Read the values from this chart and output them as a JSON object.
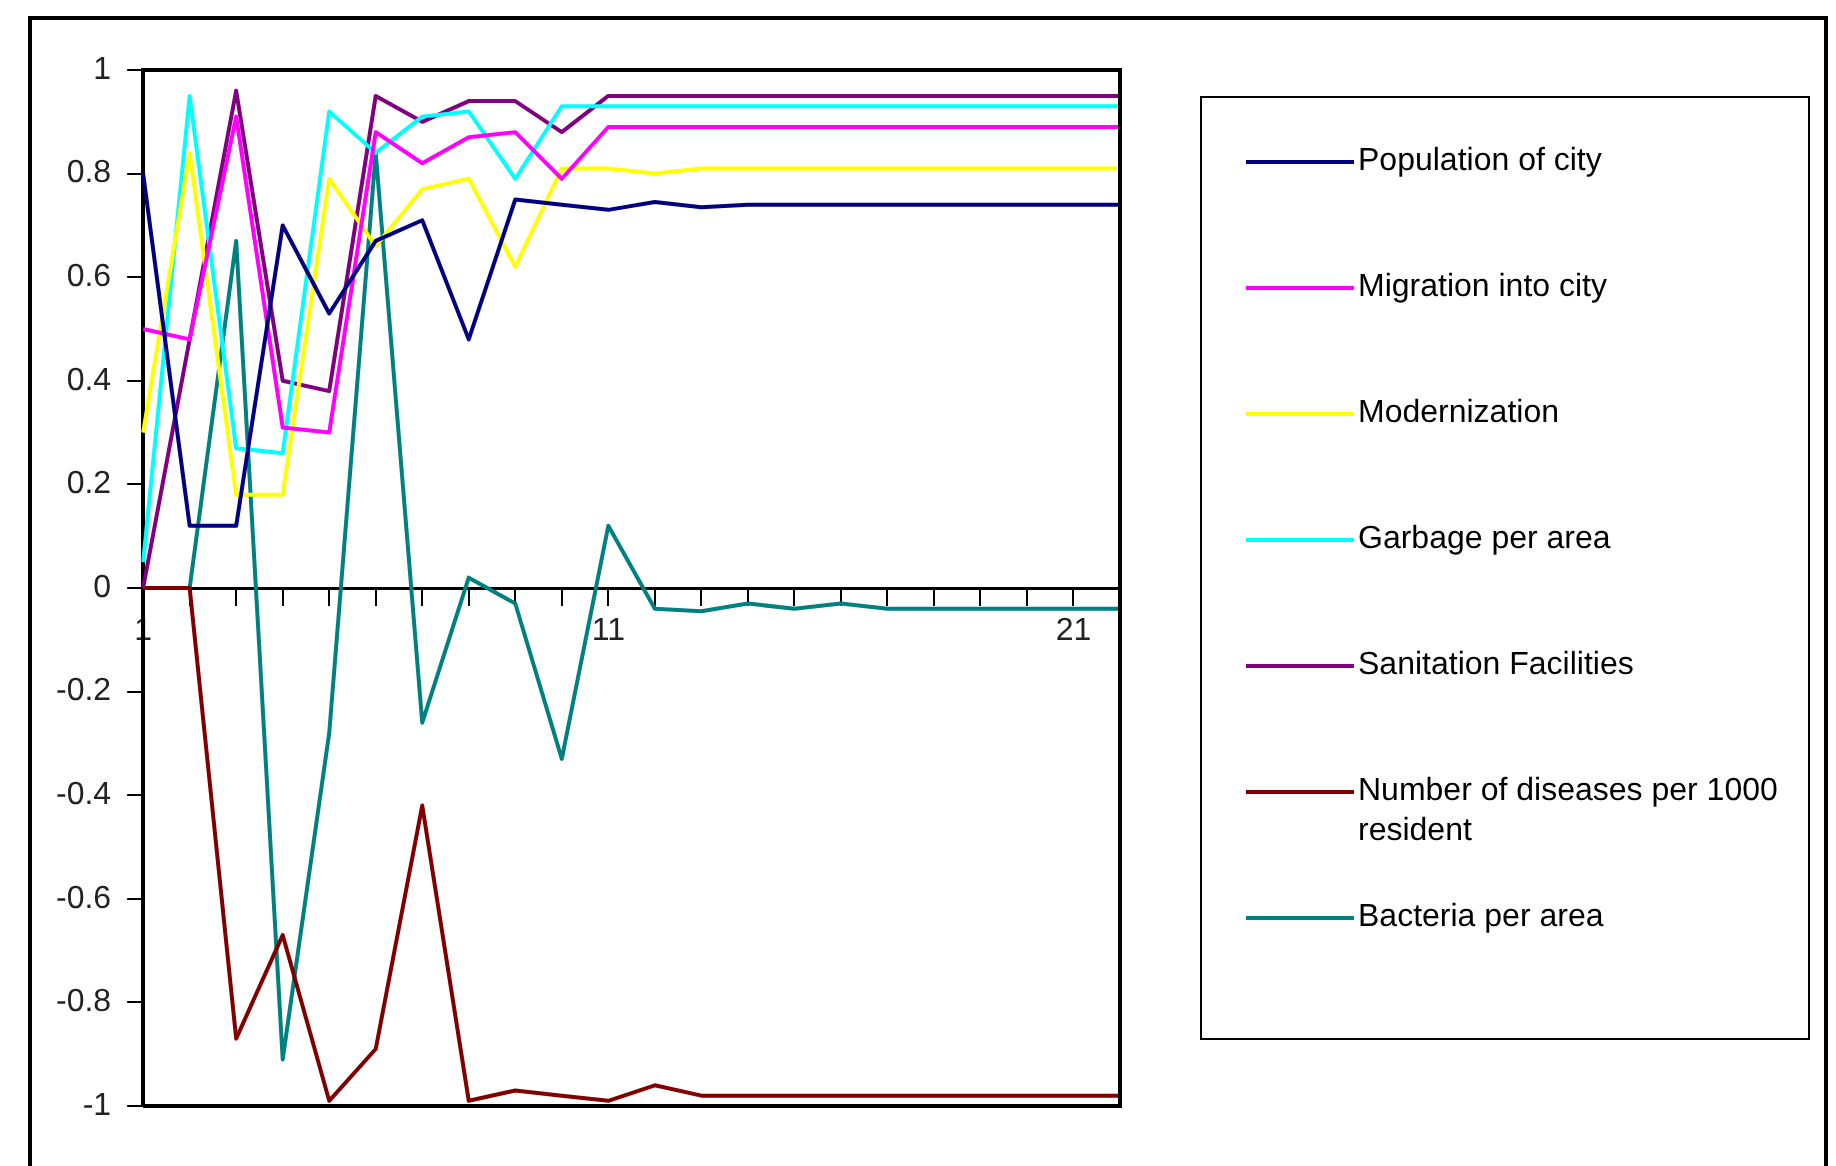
{
  "chart_data": {
    "type": "line",
    "categories": [
      "1",
      null,
      null,
      null,
      null,
      null,
      null,
      null,
      null,
      null,
      "11",
      null,
      null,
      null,
      null,
      null,
      null,
      null,
      null,
      null,
      "21",
      null
    ],
    "ylim": [
      -1,
      1
    ],
    "yticks": [
      -1,
      -0.8,
      -0.6,
      -0.4,
      -0.2,
      0,
      0.2,
      0.4,
      0.6,
      0.8,
      1
    ],
    "grid": false,
    "legend": "right",
    "marker": "none",
    "line_style": "solid",
    "series": [
      {
        "name": "Population  of city",
        "color": "#000080",
        "values": [
          0.8,
          0.12,
          0.12,
          0.7,
          0.53,
          0.67,
          0.71,
          0.48,
          0.75,
          0.74,
          0.73,
          0.745,
          0.735,
          0.74,
          0.74,
          0.74,
          0.74,
          0.74,
          0.74,
          0.74,
          0.74,
          0.74
        ]
      },
      {
        "name": "Migration  into city",
        "color": "#ff00ff",
        "values": [
          0.5,
          0.48,
          0.91,
          0.31,
          0.3,
          0.88,
          0.82,
          0.87,
          0.88,
          0.79,
          0.89,
          0.89,
          0.89,
          0.89,
          0.89,
          0.89,
          0.89,
          0.89,
          0.89,
          0.89,
          0.89,
          0.89
        ]
      },
      {
        "name": "Modernization",
        "color": "#ffff00",
        "values": [
          0.3,
          0.84,
          0.18,
          0.18,
          0.79,
          0.66,
          0.77,
          0.79,
          0.62,
          0.81,
          0.81,
          0.8,
          0.81,
          0.81,
          0.81,
          0.81,
          0.81,
          0.81,
          0.81,
          0.81,
          0.81,
          0.81
        ]
      },
      {
        "name": "Garbage per area",
        "color": "#00ffff",
        "values": [
          0.05,
          0.95,
          0.27,
          0.26,
          0.92,
          0.84,
          0.91,
          0.92,
          0.79,
          0.93,
          0.93,
          0.93,
          0.93,
          0.93,
          0.93,
          0.93,
          0.93,
          0.93,
          0.93,
          0.93,
          0.93,
          0.93
        ]
      },
      {
        "name": "Sanitation Facilities",
        "color": "#800080",
        "values": [
          0,
          0.48,
          0.96,
          0.4,
          0.38,
          0.95,
          0.9,
          0.94,
          0.94,
          0.88,
          0.95,
          0.95,
          0.95,
          0.95,
          0.95,
          0.95,
          0.95,
          0.95,
          0.95,
          0.95,
          0.95,
          0.95
        ]
      },
      {
        "name": "Number of diseases  per 1000 resident",
        "color": "#800000",
        "values": [
          0,
          0,
          -0.87,
          -0.67,
          -0.99,
          -0.89,
          -0.42,
          -0.99,
          -0.97,
          -0.98,
          -0.99,
          -0.96,
          -0.98,
          -0.98,
          -0.98,
          -0.98,
          -0.98,
          -0.98,
          -0.98,
          -0.98,
          -0.98,
          -0.98
        ]
      },
      {
        "name": "Bacteria per area",
        "color": "#008080",
        "values": [
          0,
          0,
          0.67,
          -0.91,
          -0.28,
          0.84,
          -0.26,
          0.02,
          -0.03,
          -0.33,
          0.12,
          -0.04,
          -0.045,
          -0.03,
          -0.04,
          -0.03,
          -0.04,
          -0.04,
          -0.04,
          -0.04,
          -0.04,
          -0.04
        ]
      }
    ]
  }
}
